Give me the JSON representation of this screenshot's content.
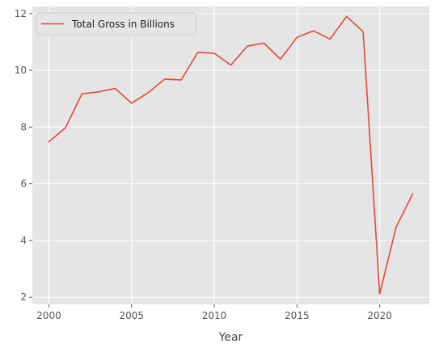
{
  "chart_data": {
    "type": "line",
    "title": "",
    "xlabel": "Year",
    "ylabel": "",
    "xlim": [
      1999.0,
      2023.0
    ],
    "ylim": [
      1.75,
      12.25
    ],
    "xticks": [
      2000,
      2005,
      2010,
      2015,
      2020
    ],
    "yticks": [
      2,
      4,
      6,
      8,
      10,
      12
    ],
    "grid": true,
    "legend_position": "top-left",
    "background": "#e5e5e5",
    "series": [
      {
        "name": "Total Gross in Billions",
        "color": "#e24a33",
        "x": [
          2000,
          2001,
          2002,
          2003,
          2004,
          2005,
          2006,
          2007,
          2008,
          2009,
          2010,
          2011,
          2012,
          2013,
          2014,
          2015,
          2016,
          2017,
          2018,
          2019,
          2020,
          2021,
          2022
        ],
        "values": [
          7.48,
          7.97,
          9.17,
          9.24,
          9.36,
          8.84,
          9.21,
          9.69,
          9.66,
          10.63,
          10.6,
          10.18,
          10.85,
          10.96,
          10.39,
          11.16,
          11.39,
          11.1,
          11.9,
          11.36,
          2.12,
          4.48,
          5.65
        ]
      }
    ]
  }
}
